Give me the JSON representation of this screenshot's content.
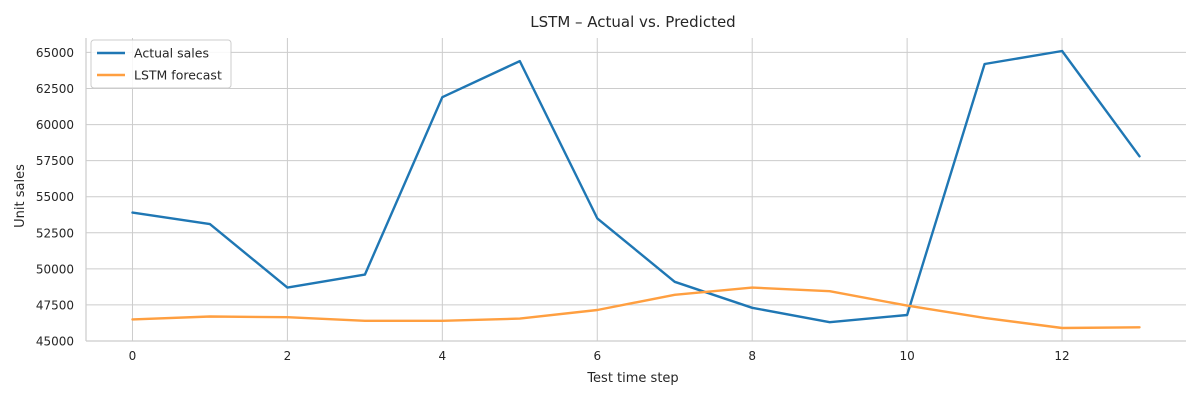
{
  "chart_data": {
    "type": "line",
    "title": "LSTM – Actual vs. Predicted",
    "xlabel": "Test time step",
    "ylabel": "Unit sales",
    "xlim": [
      -0.6,
      13.6
    ],
    "ylim": [
      45000,
      66000
    ],
    "x_ticks": [
      0,
      2,
      4,
      6,
      8,
      10,
      12
    ],
    "y_ticks": [
      45000,
      47500,
      50000,
      52500,
      55000,
      57500,
      60000,
      62500,
      65000
    ],
    "grid": true,
    "legend_position": "top-left",
    "x": [
      0,
      1,
      2,
      3,
      4,
      5,
      6,
      7,
      8,
      9,
      10,
      11,
      12,
      13
    ],
    "series": [
      {
        "name": "Actual sales",
        "color": "#1f77b4",
        "values": [
          53900,
          53100,
          48700,
          49600,
          61900,
          64400,
          53500,
          49100,
          47300,
          46300,
          46800,
          64200,
          65100,
          57800
        ]
      },
      {
        "name": "LSTM forecast",
        "color": "#ff9f40",
        "values": [
          46500,
          46700,
          46650,
          46400,
          46400,
          46550,
          47150,
          48200,
          48700,
          48450,
          47450,
          46600,
          45900,
          45950
        ]
      }
    ]
  }
}
